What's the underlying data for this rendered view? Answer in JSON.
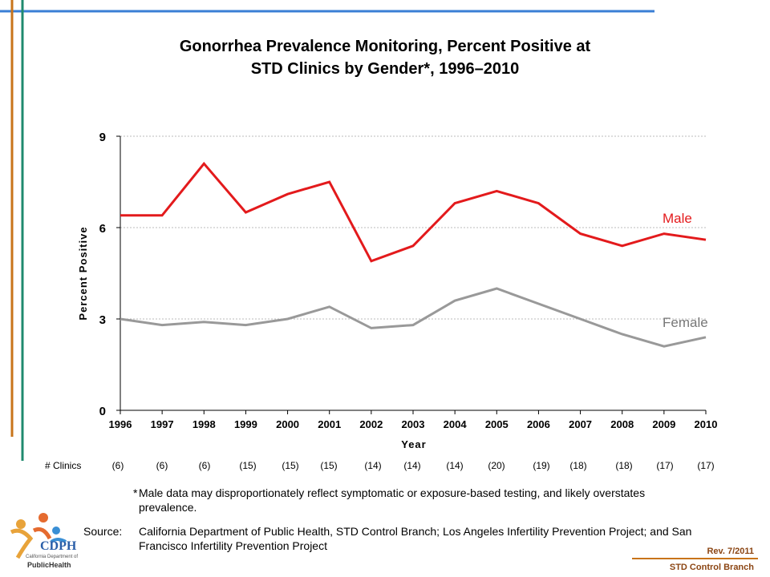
{
  "title_line1": "Gonorrhea Prevalence Monitoring, Percent Positive at",
  "title_line2": "STD Clinics by Gender*, 1996–2010",
  "clinics_label": "# Clinics",
  "clinics": [
    "(6)",
    "(6)",
    "(6)",
    "(15)",
    "(15)",
    "(15)",
    "(14)",
    "(14)",
    "(14)",
    "(20)",
    "(19)",
    "(18)",
    "(18)",
    "(17)",
    "(17)"
  ],
  "footnote_star": "*",
  "footnote_text": "Male data may disproportionately reflect symptomatic or exposure-based testing, and likely overstates prevalence.",
  "source_label": "Source:",
  "source_text": "California Department of Public Health, STD Control Branch; Los Angeles Infertility Prevention Project; and San Francisco Infertility Prevention Project",
  "rev": "Rev. 7/2011",
  "branch": "STD Control Branch",
  "logo_text": "CDPH",
  "logo_caption": "California Department of",
  "logo_org": "PublicHealth",
  "colors": {
    "male": "#e31a1c",
    "female": "#999999",
    "top_rule": "#3a7fd5",
    "left_rule_1": "#c8741a",
    "left_rule_2": "#1f8a6e",
    "footer": "#8b4513"
  },
  "chart_data": {
    "type": "line",
    "title": "Gonorrhea Prevalence Monitoring, Percent Positive at STD Clinics by Gender*, 1996–2010",
    "xlabel": "Year",
    "ylabel": "Percent Positive",
    "ylim": [
      0,
      9
    ],
    "yticks": [
      0,
      3,
      6,
      9
    ],
    "x": [
      "1996",
      "1997",
      "1998",
      "1999",
      "2000",
      "2001",
      "2002",
      "2003",
      "2004",
      "2005",
      "2006",
      "2007",
      "2008",
      "2009",
      "2010"
    ],
    "series": [
      {
        "name": "Male",
        "values": [
          6.4,
          6.4,
          8.1,
          6.5,
          7.1,
          7.5,
          4.9,
          5.4,
          6.8,
          7.2,
          6.8,
          5.8,
          5.4,
          5.8,
          5.6
        ]
      },
      {
        "name": "Female",
        "values": [
          3.0,
          2.8,
          2.9,
          2.8,
          3.0,
          3.4,
          2.7,
          2.8,
          3.6,
          4.0,
          3.5,
          3.0,
          2.5,
          2.1,
          2.4
        ]
      }
    ],
    "grid": true
  }
}
